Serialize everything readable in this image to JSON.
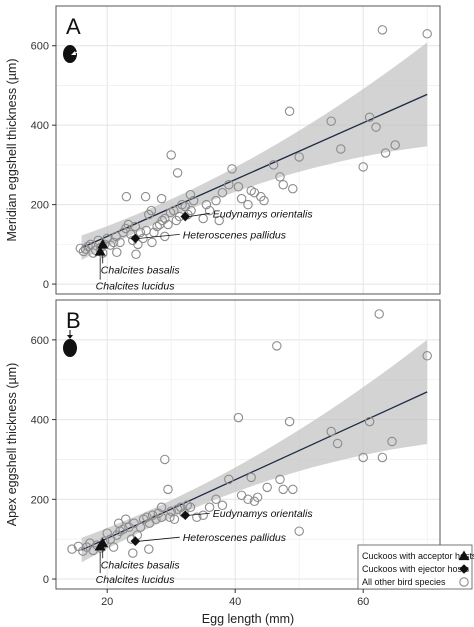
{
  "chart_data": [
    {
      "type": "scatter",
      "panel_label": "A",
      "ylabel": "Meridian eggshell thickness (µm)",
      "xlabel": "",
      "xlim": [
        12,
        72
      ],
      "ylim": [
        -25,
        700
      ],
      "x_ticks": [
        20,
        40,
        60
      ],
      "y_ticks": [
        0,
        200,
        400,
        600
      ],
      "grid": true,
      "regression": {
        "x_range": [
          16,
          70
        ],
        "slope": 7.15,
        "intercept": -23,
        "ci_band": true
      },
      "series": [
        {
          "name": "All other bird species",
          "marker": "open-circle",
          "points": [
            [
              15.8,
              90
            ],
            [
              16.3,
              82
            ],
            [
              16.6,
              88
            ],
            [
              17.0,
              95
            ],
            [
              17.4,
              100
            ],
            [
              17.8,
              78
            ],
            [
              18.2,
              85
            ],
            [
              18.6,
              110
            ],
            [
              19.0,
              92
            ],
            [
              19.3,
              78
            ],
            [
              19.6,
              100
            ],
            [
              20.0,
              115
            ],
            [
              20.5,
              98
            ],
            [
              21.0,
              105
            ],
            [
              21.4,
              120
            ],
            [
              22.0,
              105
            ],
            [
              22.5,
              130
            ],
            [
              22.9,
              140
            ],
            [
              23.3,
              150
            ],
            [
              23.7,
              125
            ],
            [
              24.0,
              110
            ],
            [
              24.4,
              145
            ],
            [
              24.8,
              100
            ],
            [
              25.2,
              130
            ],
            [
              25.6,
              115
            ],
            [
              26.1,
              135
            ],
            [
              26.5,
              175
            ],
            [
              26.9,
              185
            ],
            [
              27.3,
              130
            ],
            [
              27.8,
              145
            ],
            [
              28.2,
              150
            ],
            [
              28.6,
              160
            ],
            [
              29.0,
              165
            ],
            [
              29.5,
              150
            ],
            [
              29.9,
              180
            ],
            [
              30.4,
              185
            ],
            [
              30.8,
              160
            ],
            [
              31.3,
              170
            ],
            [
              31.7,
              200
            ],
            [
              32.2,
              195
            ],
            [
              32.6,
              175
            ],
            [
              33.1,
              185
            ],
            [
              33.5,
              210
            ],
            [
              35.0,
              165
            ],
            [
              36.0,
              185
            ],
            [
              37.0,
              210
            ],
            [
              37.5,
              160
            ],
            [
              38.0,
              230
            ],
            [
              39.0,
              250
            ],
            [
              40.5,
              245
            ],
            [
              41.0,
              215
            ],
            [
              42.0,
              200
            ],
            [
              42.5,
              235
            ],
            [
              43.0,
              230
            ],
            [
              44.0,
              220
            ],
            [
              46.0,
              300
            ],
            [
              47.0,
              270
            ],
            [
              47.5,
              250
            ],
            [
              48.5,
              435
            ],
            [
              49.0,
              240
            ],
            [
              50.0,
              320
            ],
            [
              55.0,
              410
            ],
            [
              56.5,
              340
            ],
            [
              60.0,
              295
            ],
            [
              61.0,
              420
            ],
            [
              62.0,
              395
            ],
            [
              63.0,
              640
            ],
            [
              63.5,
              330
            ],
            [
              65.0,
              350
            ],
            [
              70.0,
              630
            ],
            [
              23.0,
              220
            ],
            [
              26.0,
              220
            ],
            [
              28.5,
              215
            ],
            [
              30.0,
              325
            ],
            [
              31.0,
              280
            ],
            [
              33.0,
              225
            ],
            [
              39.5,
              290
            ],
            [
              27.0,
              105
            ],
            [
              29.0,
              120
            ],
            [
              21.5,
              80
            ],
            [
              24.5,
              75
            ],
            [
              35.5,
              200
            ],
            [
              44.5,
              210
            ]
          ]
        },
        {
          "name": "Cuckoos with acceptor hosts",
          "marker": "triangle",
          "points": [
            [
              19.3,
              100
            ],
            [
              18.9,
              82
            ]
          ]
        },
        {
          "name": "Cuckoos with ejector hosts",
          "marker": "diamond",
          "points": [
            [
              32.2,
              170
            ],
            [
              24.4,
              115
            ]
          ]
        }
      ],
      "annotations": [
        {
          "text": "Eudynamys orientalis",
          "x": 32.2,
          "y": 170,
          "tx": 36.5,
          "ty": 168
        },
        {
          "text": "Heteroscenes pallidus",
          "x": 24.4,
          "y": 115,
          "tx": 31.8,
          "ty": 115
        },
        {
          "text": "Chalcites basalis",
          "x": 19.3,
          "y": 100,
          "tx": 19.0,
          "ty": 27
        },
        {
          "text": "Chalcites lucidus",
          "x": 18.9,
          "y": 82,
          "tx": 18.2,
          "ty": -14
        }
      ]
    },
    {
      "type": "scatter",
      "panel_label": "B",
      "ylabel": "Apex eggshell thickness (µm)",
      "xlabel": "Egg length (mm)",
      "xlim": [
        12,
        72
      ],
      "ylim": [
        -25,
        700
      ],
      "x_ticks": [
        20,
        40,
        60
      ],
      "y_ticks": [
        0,
        200,
        400,
        600
      ],
      "grid": true,
      "regression": {
        "x_range": [
          16,
          70
        ],
        "slope": 7.35,
        "intercept": -45,
        "ci_band": true
      },
      "series": [
        {
          "name": "All other bird species",
          "marker": "open-circle",
          "points": [
            [
              14.5,
              75
            ],
            [
              15.5,
              82
            ],
            [
              16.2,
              70
            ],
            [
              16.8,
              80
            ],
            [
              17.3,
              90
            ],
            [
              17.8,
              72
            ],
            [
              18.4,
              85
            ],
            [
              19.0,
              78
            ],
            [
              19.6,
              95
            ],
            [
              20.0,
              115
            ],
            [
              20.5,
              100
            ],
            [
              21.0,
              80
            ],
            [
              21.5,
              110
            ],
            [
              22.0,
              120
            ],
            [
              22.5,
              125
            ],
            [
              22.9,
              150
            ],
            [
              23.4,
              130
            ],
            [
              23.8,
              100
            ],
            [
              24.2,
              140
            ],
            [
              24.7,
              110
            ],
            [
              25.2,
              130
            ],
            [
              25.7,
              150
            ],
            [
              26.2,
              155
            ],
            [
              26.6,
              140
            ],
            [
              27.1,
              160
            ],
            [
              27.6,
              150
            ],
            [
              28.0,
              165
            ],
            [
              28.5,
              155
            ],
            [
              29.0,
              300
            ],
            [
              29.5,
              225
            ],
            [
              30.0,
              170
            ],
            [
              30.5,
              150
            ],
            [
              31.0,
              175
            ],
            [
              31.5,
              180
            ],
            [
              32.0,
              165
            ],
            [
              33.0,
              180
            ],
            [
              34.0,
              155
            ],
            [
              35.0,
              160
            ],
            [
              36.0,
              180
            ],
            [
              37.0,
              200
            ],
            [
              38.0,
              185
            ],
            [
              39.0,
              250
            ],
            [
              40.5,
              405
            ],
            [
              41.0,
              210
            ],
            [
              42.0,
              200
            ],
            [
              42.5,
              255
            ],
            [
              43.0,
              195
            ],
            [
              43.5,
              205
            ],
            [
              46.5,
              585
            ],
            [
              47.0,
              250
            ],
            [
              47.5,
              225
            ],
            [
              48.5,
              395
            ],
            [
              49.0,
              225
            ],
            [
              50.0,
              120
            ],
            [
              55.0,
              370
            ],
            [
              56.0,
              340
            ],
            [
              60.0,
              305
            ],
            [
              61.0,
              395
            ],
            [
              62.5,
              665
            ],
            [
              63.0,
              305
            ],
            [
              64.5,
              345
            ],
            [
              70.0,
              560
            ],
            [
              21.8,
              140
            ],
            [
              24.0,
              65
            ],
            [
              26.5,
              75
            ],
            [
              29.8,
              155
            ],
            [
              32.5,
              185
            ],
            [
              28.5,
              180
            ],
            [
              45.0,
              230
            ]
          ]
        },
        {
          "name": "Cuckoos with acceptor hosts",
          "marker": "triangle",
          "points": [
            [
              19.3,
              90
            ],
            [
              18.9,
              82
            ]
          ]
        },
        {
          "name": "Cuckoos with ejector hosts",
          "marker": "diamond",
          "points": [
            [
              32.2,
              160
            ],
            [
              24.4,
              95
            ]
          ]
        }
      ],
      "annotations": [
        {
          "text": "Eudynamys orientalis",
          "x": 32.2,
          "y": 160,
          "tx": 36.5,
          "ty": 155
        },
        {
          "text": "Heteroscenes pallidus",
          "x": 24.4,
          "y": 95,
          "tx": 31.8,
          "ty": 95
        },
        {
          "text": "Chalcites basalis",
          "x": 19.3,
          "y": 90,
          "tx": 19.0,
          "ty": 27
        },
        {
          "text": "Chalcites lucidus",
          "x": 18.9,
          "y": 82,
          "tx": 18.2,
          "ty": -10
        }
      ],
      "legend": {
        "position": "bottom-right",
        "entries": [
          {
            "label": "Cuckoos with acceptor hosts",
            "marker": "triangle"
          },
          {
            "label": "Cuckoos with ejector hosts",
            "marker": "diamond"
          },
          {
            "label": "All other bird species",
            "marker": "open-circle"
          }
        ]
      }
    }
  ],
  "colors": {
    "grid": "#e4e4e4",
    "panel_border": "#555555",
    "regression_line": "#1c2a44",
    "ci_band": "#c4c4c4",
    "open_marker_stroke": "#8c8c8c",
    "filled_marker": "#111111"
  }
}
